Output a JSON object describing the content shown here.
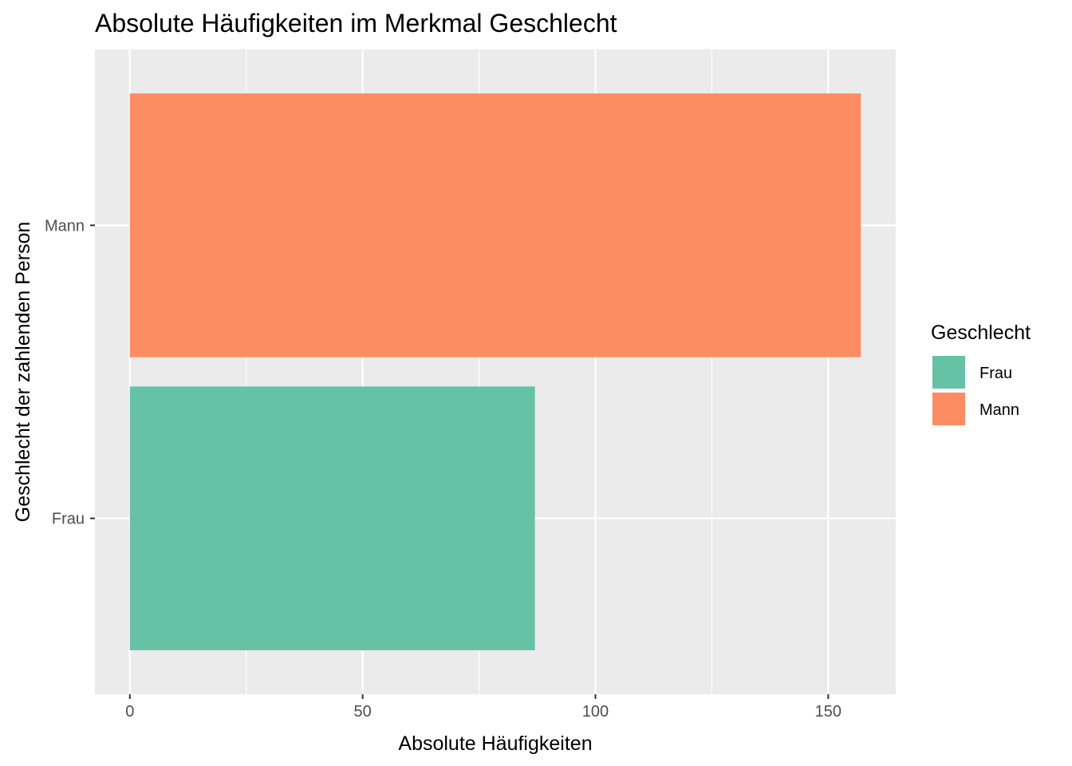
{
  "chart_data": {
    "type": "bar",
    "orientation": "horizontal",
    "title": "Absolute Häufigkeiten im Merkmal Geschlecht",
    "xlabel": "Absolute Häufigkeiten",
    "ylabel": "Geschlecht der zahlenden Person",
    "categories": [
      "Frau",
      "Mann"
    ],
    "values": [
      87,
      157
    ],
    "colors": [
      "#66c2a5",
      "#fc8d62"
    ],
    "xlim": [
      -7.5,
      164.5
    ],
    "xticks": [
      0,
      50,
      100,
      150
    ],
    "xtick_labels": [
      "0",
      "50",
      "100",
      "150"
    ],
    "grid": true,
    "panel_background": "#ebebeb",
    "grid_color": "#ffffff",
    "legend": {
      "title": "Geschlecht",
      "position": "right",
      "items": [
        {
          "label": "Frau",
          "color": "#66c2a5"
        },
        {
          "label": "Mann",
          "color": "#fc8d62"
        }
      ]
    }
  }
}
